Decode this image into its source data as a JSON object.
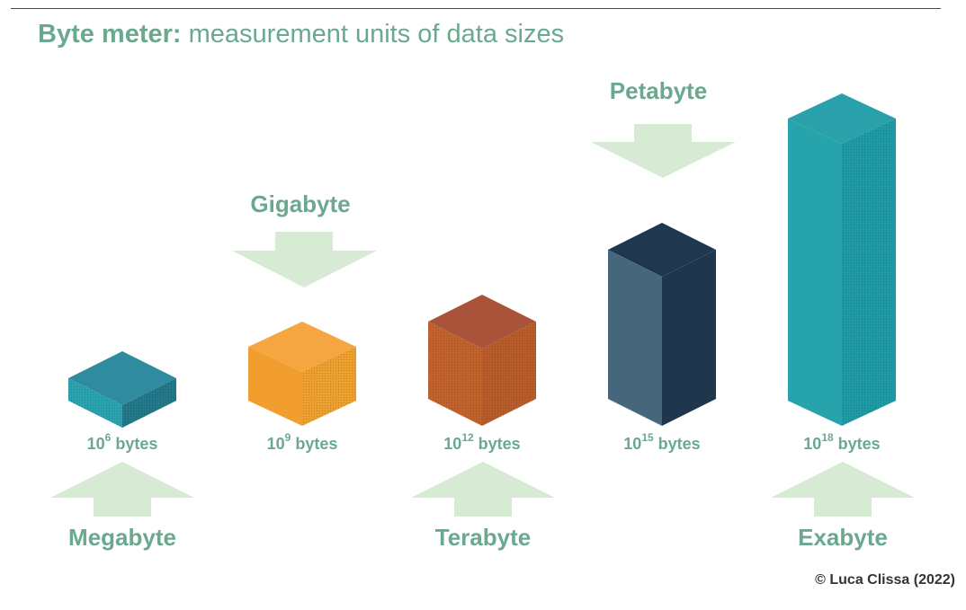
{
  "title": {
    "bold": "Byte meter:",
    "rest": " measurement units of data sizes"
  },
  "units": [
    {
      "name": "Megabyte",
      "base": "10",
      "exp": "6",
      "suffix": " bytes",
      "color_top": "#2e8c9e",
      "color_left": "#2aa3b0",
      "color_right": "#23788a"
    },
    {
      "name": "Gigabyte",
      "base": "10",
      "exp": "9",
      "suffix": " bytes",
      "color_top": "#f5a640",
      "color_left": "#f29e2e",
      "color_right": "#eda02e"
    },
    {
      "name": "Terabyte",
      "base": "10",
      "exp": "12",
      "suffix": " bytes",
      "color_top": "#a9543a",
      "color_left": "#c2632d",
      "color_right": "#b85c2a"
    },
    {
      "name": "Petabyte",
      "base": "10",
      "exp": "15",
      "suffix": " bytes",
      "color_top": "#20384f",
      "color_left": "#46667b",
      "color_right": "#1f364c"
    },
    {
      "name": "Exabyte",
      "base": "10",
      "exp": "18",
      "suffix": " bytes",
      "color_top": "#2aa0aa",
      "color_left": "#27a3ac",
      "color_right": "#1f9ba6"
    }
  ],
  "arrow_color": "#d6ead4",
  "copyright": "© Luca Clissa (2022)"
}
